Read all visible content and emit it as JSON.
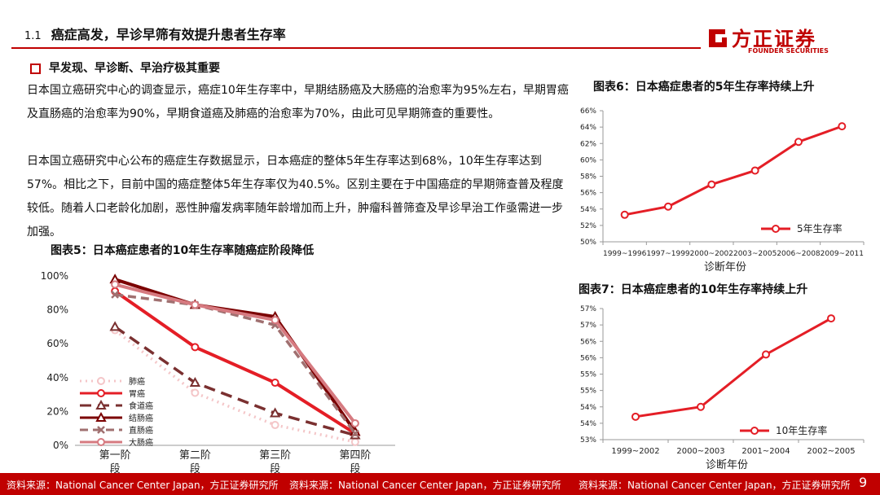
{
  "header": {
    "section_number": "1.1",
    "section_title": "癌症高发，早诊早筛有效提升患者生存率"
  },
  "logo": {
    "name_cn": "方正证券",
    "name_en": "FOUNDER SECURITIES"
  },
  "bullet_title": "早发现、早诊断、早治疗极其重要",
  "paragraphs": [
    "日本国立癌研究中心的调查显示，癌症10年生存率中，早期结肠癌及大肠癌的治愈率为95%左右，早期胃癌及直肠癌的治愈率为90%，早期食道癌及肺癌的治愈率为70%，由此可见早期筛查的重要性。",
    "日本国立癌研究中心公布的癌症生存数据显示，日本癌症的整体5年生存率达到68%，10年生存率达到57%。相比之下，目前中国的癌症整体5年生存率仅为40.5%。区别主要在于中国癌症的早期筛查普及程度较低。随着人口老龄化加剧，恶性肿瘤发病率随年龄增加而上升，肿瘤科普筛查及早诊早治工作亟需进一步加强。"
  ],
  "footer": {
    "sources": [
      "资料来源：National Cancer Center Japan，方正证券研究所",
      "资料来源：National Cancer Center Japan，方正证券研究所",
      "资料来源：National Cancer Center Japan，方正证券研究所"
    ],
    "page_number": "9"
  },
  "colors": {
    "brand_red": "#c00000",
    "line_red": "#e41e26"
  },
  "chart_data": [
    {
      "id": "fig5",
      "figure_title": "图表5：日本癌症患者的10年生存率随癌症阶段降低",
      "type": "line",
      "categories": [
        "第一阶段",
        "第二阶段",
        "第三阶段",
        "第四阶段"
      ],
      "ylim": [
        0,
        100
      ],
      "yticks": [
        0,
        20,
        40,
        60,
        80,
        100
      ],
      "ytick_labels": [
        "0%",
        "20%",
        "40%",
        "60%",
        "80%",
        "100%"
      ],
      "legend_position": "bottom-left",
      "series": [
        {
          "name": "肺癌",
          "values": [
            68,
            31,
            12,
            2
          ],
          "color": "#f4c6c8",
          "dash": "2,5",
          "marker": "circle"
        },
        {
          "name": "胃癌",
          "values": [
            91,
            58,
            37,
            7
          ],
          "color": "#e41e26",
          "dash": "",
          "marker": "circle"
        },
        {
          "name": "食道癌",
          "values": [
            70,
            37,
            19,
            6
          ],
          "color": "#7a3030",
          "dash": "14,8",
          "marker": "triangle"
        },
        {
          "name": "结肠癌",
          "values": [
            98,
            83,
            76,
            8
          ],
          "color": "#7b0000",
          "dash": "",
          "marker": "triangle"
        },
        {
          "name": "直肠癌",
          "values": [
            89,
            83,
            71,
            7
          ],
          "color": "#a07070",
          "dash": "10,6",
          "marker": "x"
        },
        {
          "name": "大肠癌",
          "values": [
            95,
            83,
            74,
            13
          ],
          "color": "#d67a80",
          "dash": "",
          "marker": "circle"
        }
      ]
    },
    {
      "id": "fig6",
      "figure_title": "图表6：日本癌症患者的5年生存率持续上升",
      "type": "line",
      "categories": [
        "1999~1996",
        "1997~1999",
        "2000~2002",
        "2003~2005",
        "2006~2008",
        "2009~2011"
      ],
      "xlabel": "诊断年份",
      "ylim": [
        50,
        66
      ],
      "yticks": [
        50,
        52,
        54,
        56,
        58,
        60,
        62,
        64,
        66
      ],
      "ytick_labels": [
        "50%",
        "52%",
        "54%",
        "56%",
        "58%",
        "60%",
        "62%",
        "64%",
        "66%"
      ],
      "legend_position": "bottom-right",
      "series": [
        {
          "name": "5年生存率",
          "values": [
            53.3,
            54.3,
            57.0,
            58.7,
            62.2,
            64.1
          ],
          "color": "#e41e26"
        }
      ]
    },
    {
      "id": "fig7",
      "figure_title": "图表7：日本癌症患者的10年生存率持续上升",
      "type": "line",
      "categories": [
        "1999~2002",
        "2000~2003",
        "2001~2004",
        "2002~2005"
      ],
      "xlabel": "诊断年份",
      "ylim": [
        53,
        57
      ],
      "yticks": [
        53,
        53.5,
        54,
        54.5,
        55,
        55.5,
        56,
        56.5,
        57
      ],
      "ytick_labels": [
        "53%",
        "54%",
        "54%",
        "55%",
        "55%",
        "56%",
        "56%",
        "57%",
        "57%"
      ],
      "legend_position": "bottom-right",
      "series": [
        {
          "name": "10年生存率",
          "values": [
            53.7,
            54.0,
            55.6,
            56.7
          ],
          "color": "#e41e26"
        }
      ]
    }
  ]
}
